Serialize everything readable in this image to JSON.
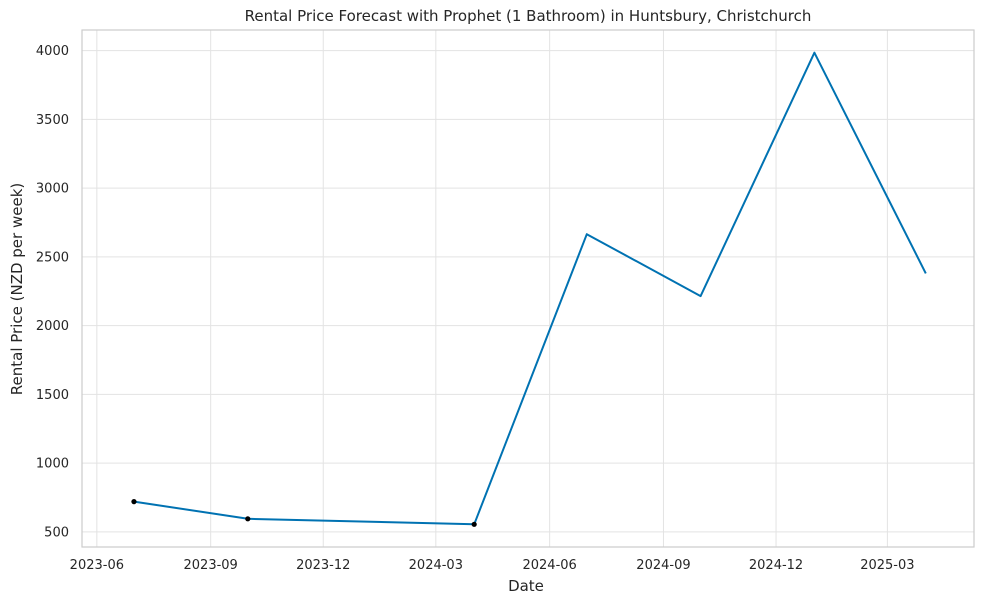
{
  "chart_data": {
    "type": "line",
    "title": "Rental Price Forecast with Prophet (1 Bathroom) in Huntsbury, Christchurch",
    "xlabel": "Date",
    "ylabel": "Rental Price (NZD per week)",
    "x_ticks": [
      "2023-06",
      "2023-09",
      "2023-12",
      "2024-03",
      "2024-06",
      "2024-09",
      "2024-12",
      "2025-03"
    ],
    "y_ticks": [
      500,
      1000,
      1500,
      2000,
      2500,
      3000,
      3500,
      4000
    ],
    "xlim": [
      "2023-05-20",
      "2025-05-10"
    ],
    "ylim": [
      390,
      4150
    ],
    "grid": true,
    "colors": {
      "forecast_line": "#0072b2",
      "observed_points": "#000000"
    },
    "series": [
      {
        "style": "line",
        "x": [
          "2023-07-01",
          "2023-10-01",
          "2024-04-01",
          "2024-07-01",
          "2024-10-01",
          "2025-01-01",
          "2025-04-01"
        ],
        "values": [
          720,
          595,
          555,
          2665,
          2215,
          3985,
          2380
        ]
      },
      {
        "style": "points",
        "x": [
          "2023-07-01",
          "2023-10-01",
          "2024-04-01"
        ],
        "values": [
          720,
          595,
          555
        ]
      }
    ]
  }
}
